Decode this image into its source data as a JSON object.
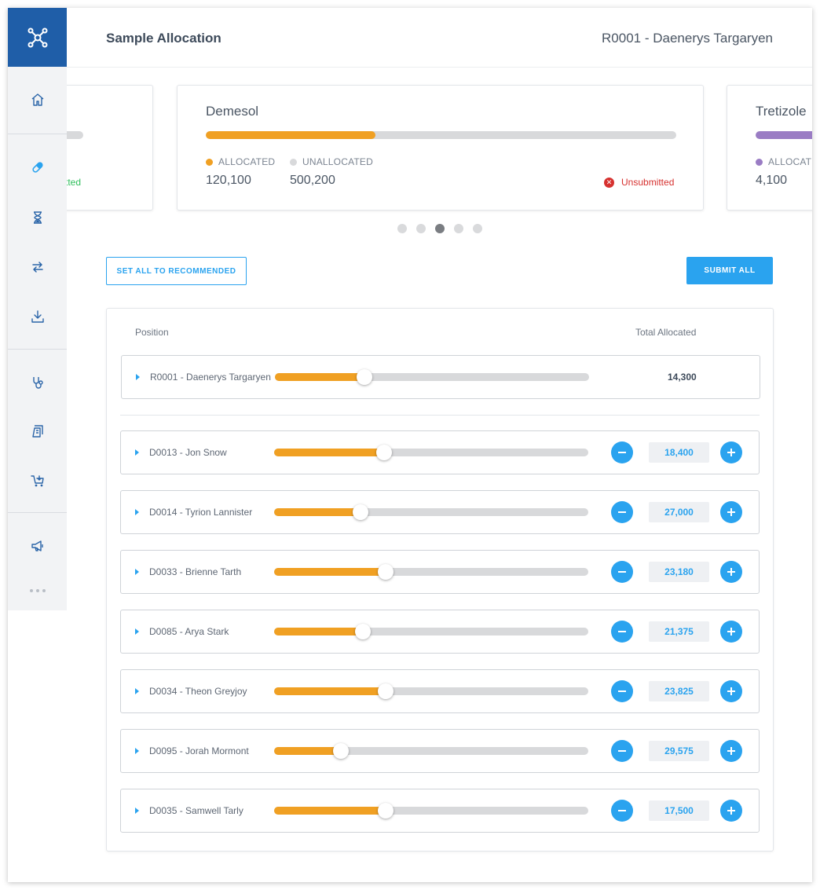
{
  "header": {
    "title": "Sample Allocation",
    "user": "R0001 - Daenerys Targaryen"
  },
  "sidebar": {
    "items": [
      {
        "name": "home-icon"
      },
      {
        "name": "pill-icon"
      },
      {
        "name": "hourglass-icon"
      },
      {
        "name": "swap-icon"
      },
      {
        "name": "download-icon"
      },
      {
        "name": "stethoscope-icon"
      },
      {
        "name": "document-icon"
      },
      {
        "name": "cart-icon"
      },
      {
        "name": "megaphone-icon"
      }
    ]
  },
  "carousel": {
    "cards": [
      {
        "title": "",
        "status": "Submitted",
        "fill_fraction": 0.0,
        "color": "#f0a023"
      },
      {
        "title": "Demesol",
        "allocated_label": "ALLOCATED",
        "unallocated_label": "UNALLOCATED",
        "allocated_value": "120,100",
        "unallocated_value": "500,200",
        "status": "Unsubmitted",
        "fill_fraction": 0.36,
        "color": "#f0a023"
      },
      {
        "title": "Tretizole",
        "allocated_label": "ALLOCATED",
        "allocated_value": "4,100",
        "color": "#9a7cc4",
        "fill_fraction": 1.0
      }
    ],
    "page_count": 5,
    "active_page": 3
  },
  "actions": {
    "recommend_label": "SET ALL TO RECOMMENDED",
    "submit_label": "SUBMIT ALL"
  },
  "table": {
    "col_position": "Position",
    "col_total": "Total Allocated",
    "parent": {
      "label": "R0001 - Daenerys Targaryen",
      "total": "14,300",
      "fill_fraction": 0.285
    },
    "rows": [
      {
        "label": "D0013 - Jon Snow",
        "value": "18,400",
        "fill_fraction": 0.35
      },
      {
        "label": "D0014 - Tyrion Lannister",
        "value": "27,000",
        "fill_fraction": 0.275
      },
      {
        "label": "D0033 - Brienne Tarth",
        "value": "23,180",
        "fill_fraction": 0.355
      },
      {
        "label": "D0085 - Arya Stark",
        "value": "21,375",
        "fill_fraction": 0.282
      },
      {
        "label": "D0034 - Theon Greyjoy",
        "value": "23,825",
        "fill_fraction": 0.355
      },
      {
        "label": "D0095 - Jorah Mormont",
        "value": "29,575",
        "fill_fraction": 0.212
      },
      {
        "label": "D0035 - Samwell Tarly",
        "value": "17,500",
        "fill_fraction": 0.355
      }
    ]
  },
  "colors": {
    "accent": "#2aa3ef",
    "allocated": "#f0a023",
    "unallocated": "#d8d9db",
    "success": "#2fbf5c",
    "danger": "#d6312f",
    "brand": "#1f5ea8"
  }
}
